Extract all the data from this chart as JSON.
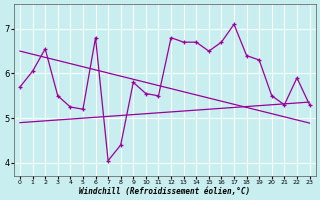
{
  "background_color": "#c8eef0",
  "grid_color": "#ffffff",
  "line_color": "#990099",
  "xlim": [
    -0.5,
    23.5
  ],
  "ylim": [
    3.7,
    7.55
  ],
  "yticks": [
    4,
    5,
    6,
    7
  ],
  "xticks": [
    0,
    1,
    2,
    3,
    4,
    5,
    6,
    7,
    8,
    9,
    10,
    11,
    12,
    13,
    14,
    15,
    16,
    17,
    18,
    19,
    20,
    21,
    22,
    23
  ],
  "xlabel": "Windchill (Refroidissement éolien,°C)",
  "x": [
    0,
    1,
    2,
    3,
    4,
    5,
    6,
    7,
    8,
    9,
    10,
    11,
    12,
    13,
    14,
    15,
    16,
    17,
    18,
    19,
    20,
    21,
    22,
    23
  ],
  "line_zigzag": [
    5.7,
    6.05,
    6.55,
    5.5,
    5.25,
    5.2,
    6.8,
    4.05,
    4.4,
    5.8,
    5.55,
    5.5,
    6.8,
    6.7,
    6.7,
    6.5,
    6.7,
    7.1,
    6.4,
    6.3,
    5.5,
    5.3,
    5.9,
    5.3
  ],
  "trend_down": [
    6.5,
    6.43,
    6.36,
    6.29,
    6.22,
    6.15,
    6.08,
    6.01,
    5.94,
    5.87,
    5.8,
    5.73,
    5.66,
    5.59,
    5.52,
    5.45,
    5.38,
    5.31,
    5.24,
    5.17,
    5.1,
    5.03,
    4.96,
    4.89
  ],
  "trend_flat_up": [
    4.9,
    4.92,
    4.94,
    4.96,
    4.98,
    5.0,
    5.02,
    5.04,
    5.06,
    5.08,
    5.1,
    5.12,
    5.14,
    5.16,
    5.18,
    5.2,
    5.22,
    5.24,
    5.26,
    5.28,
    5.3,
    5.32,
    5.34,
    5.36
  ]
}
